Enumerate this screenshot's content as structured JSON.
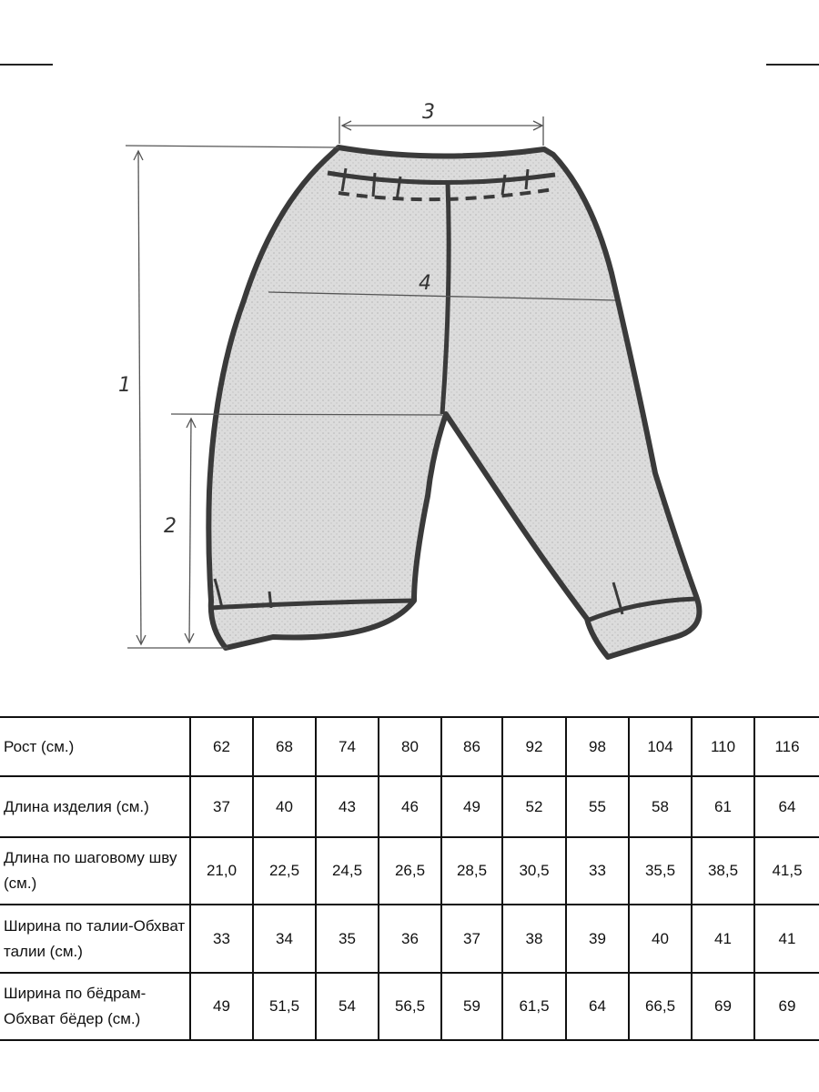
{
  "drawing": {
    "labels": {
      "length": "1",
      "inseam": "2",
      "waist": "3",
      "hip": "4"
    },
    "fill_color": "#d9d9d9",
    "outline_color": "#3a3a3a"
  },
  "table": {
    "rows": [
      {
        "label": "Рост (см.)",
        "values": [
          "62",
          "68",
          "74",
          "80",
          "86",
          "92",
          "98",
          "104",
          "110",
          "116"
        ]
      },
      {
        "label": "Длина изделия (см.)",
        "values": [
          "37",
          "40",
          "43",
          "46",
          "49",
          "52",
          "55",
          "58",
          "61",
          "64"
        ]
      },
      {
        "label": "Длина по шаговому шву (см.)",
        "values": [
          "21,0",
          "22,5",
          "24,5",
          "26,5",
          "28,5",
          "30,5",
          "33",
          "35,5",
          "38,5",
          "41,5"
        ]
      },
      {
        "label": "Ширина по талии-Обхват талии (см.)",
        "values": [
          "33",
          "34",
          "35",
          "36",
          "37",
          "38",
          "39",
          "40",
          "41",
          "41"
        ]
      },
      {
        "label": "Ширина по бёдрам-Обхват бёдер (см.)",
        "values": [
          "49",
          "51,5",
          "54",
          "56,5",
          "59",
          "61,5",
          "64",
          "66,5",
          "69",
          "69"
        ]
      }
    ]
  }
}
